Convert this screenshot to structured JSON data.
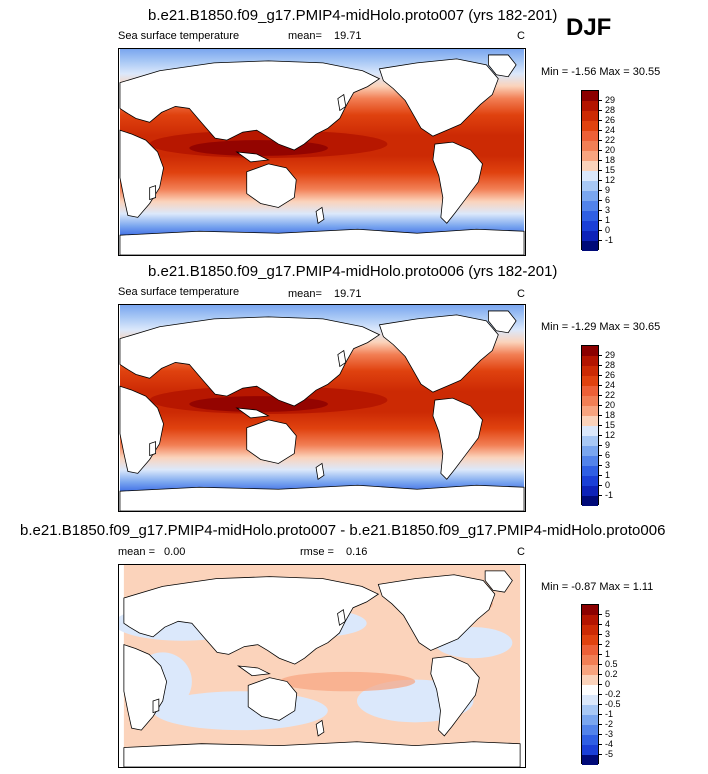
{
  "season": "DJF",
  "panels": [
    {
      "title": "b.e21.B1850.f09_g17.PMIP4-midHolo.proto007 (yrs 182-201)",
      "variable": "Sea surface temperature",
      "stat_label": "mean=",
      "stat_value": "19.71",
      "units": "C",
      "minmax": "Min = -1.56 Max = 30.55"
    },
    {
      "title": "b.e21.B1850.f09_g17.PMIP4-midHolo.proto006 (yrs 182-201)",
      "variable": "Sea surface temperature",
      "stat_label": "mean=",
      "stat_value": "19.71",
      "units": "C",
      "minmax": "Min = -1.29 Max = 30.65"
    },
    {
      "title": "b.e21.B1850.f09_g17.PMIP4-midHolo.proto007 - b.e21.B1850.f09_g17.PMIP4-midHolo.proto006",
      "variable": "",
      "stat_label": "mean =",
      "stat_value": "0.00",
      "stat2_label": "rmse =",
      "stat2_value": "0.16",
      "units": "C",
      "minmax": "Min = -0.87 Max = 1.11"
    }
  ],
  "chart_data": [
    {
      "type": "heatmap",
      "title": "b.e21.B1850.f09_g17.PMIP4-midHolo.proto007 (yrs 182-201)",
      "variable": "Sea surface temperature",
      "units": "C",
      "mean": 19.71,
      "min": -1.56,
      "max": 30.55,
      "colorbar_levels": [
        "29",
        "28",
        "26",
        "24",
        "22",
        "20",
        "18",
        "15",
        "12",
        "9",
        "6",
        "3",
        "1",
        "0",
        "-1"
      ],
      "colorbar_colors": [
        "#8b0000",
        "#b31400",
        "#cc2a04",
        "#e0420f",
        "#ed6037",
        "#f27f55",
        "#f8a47f",
        "#fbd3bb",
        "#dbe8fb",
        "#a8c8f5",
        "#7aa6ef",
        "#5283ea",
        "#2f5fe3",
        "#1a3fd6",
        "#0d22b8",
        "#000a78"
      ]
    },
    {
      "type": "heatmap",
      "title": "b.e21.B1850.f09_g17.PMIP4-midHolo.proto006 (yrs 182-201)",
      "variable": "Sea surface temperature",
      "units": "C",
      "mean": 19.71,
      "min": -1.29,
      "max": 30.65,
      "colorbar_levels": [
        "29",
        "28",
        "26",
        "24",
        "22",
        "20",
        "18",
        "15",
        "12",
        "9",
        "6",
        "3",
        "1",
        "0",
        "-1"
      ],
      "colorbar_colors": [
        "#8b0000",
        "#b31400",
        "#cc2a04",
        "#e0420f",
        "#ed6037",
        "#f27f55",
        "#f8a47f",
        "#fbd3bb",
        "#dbe8fb",
        "#a8c8f5",
        "#7aa6ef",
        "#5283ea",
        "#2f5fe3",
        "#1a3fd6",
        "#0d22b8",
        "#000a78"
      ]
    },
    {
      "type": "heatmap",
      "title": "b.e21.B1850.f09_g17.PMIP4-midHolo.proto007 - b.e21.B1850.f09_g17.PMIP4-midHolo.proto006",
      "units": "C",
      "mean": 0.0,
      "rmse": 0.16,
      "min": -0.87,
      "max": 1.11,
      "colorbar_levels": [
        "5",
        "4",
        "3",
        "2",
        "1",
        "0.5",
        "0.2",
        "0",
        "-0.2",
        "-0.5",
        "-1",
        "-2",
        "-3",
        "-4",
        "-5"
      ],
      "colorbar_colors": [
        "#8b0000",
        "#b31400",
        "#cc2a04",
        "#e0420f",
        "#ed6037",
        "#f27f55",
        "#f8a47f",
        "#fbd3bb",
        "#ffffff",
        "#dbe8fb",
        "#a8c8f5",
        "#7aa6ef",
        "#5283ea",
        "#2f5fe3",
        "#1a3fd6",
        "#000a78"
      ]
    }
  ]
}
